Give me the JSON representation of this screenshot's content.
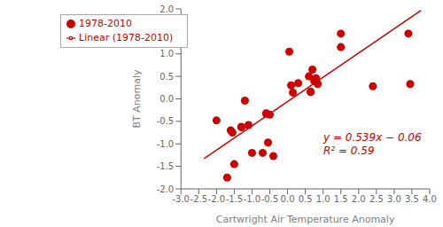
{
  "chart_data": {
    "type": "scatter",
    "x_label": "Cartwright Air Temperature Anomaly",
    "y_label": "BT Anomaly",
    "annotations": [
      "y = 0.539x − 0.06",
      "R² = 0.59"
    ],
    "xlim": [
      -3.0,
      4.0
    ],
    "ylim": [
      -2.0,
      2.0
    ],
    "xticks": [
      {
        "value": -3.0,
        "label": "-3.0"
      },
      -2.5,
      {
        "value": -2.0,
        "label": "-2.0"
      },
      -1.5,
      {
        "value": -1.0,
        "label": "-1.0"
      },
      -0.5,
      {
        "value": 0.0,
        "label": "0.0"
      },
      0.5,
      {
        "value": 1.0,
        "label": "1.0"
      },
      1.5,
      {
        "value": 2.0,
        "label": "2.0"
      },
      2.5,
      {
        "value": 3.0,
        "label": "3.0"
      },
      3.5,
      {
        "value": 4.0,
        "label": "4.0"
      }
    ],
    "yticks": [
      {
        "value": -2.0,
        "label": "-2.0"
      },
      -1.5,
      {
        "value": -1.0,
        "label": "-1.0"
      },
      -0.5,
      {
        "value": 0.0,
        "label": "0.0"
      },
      0.5,
      {
        "value": 1.0,
        "label": "1.0"
      },
      1.5,
      {
        "value": 2.0,
        "label": "2.0"
      }
    ],
    "grid": false,
    "legend": "upper left",
    "series": [
      {
        "name": "1978-2010",
        "type": "scatter",
        "color": "#cc0000",
        "marker": "circle",
        "x": [
          -2.0,
          -1.7,
          -1.6,
          -1.55,
          -1.5,
          -1.3,
          -1.3,
          -1.2,
          -1.1,
          -1.0,
          -0.7,
          -0.6,
          -0.6,
          -0.55,
          -0.5,
          -0.4,
          0.05,
          0.1,
          0.15,
          0.3,
          0.6,
          0.65,
          0.65,
          0.7,
          0.75,
          0.8,
          0.85,
          1.5,
          1.5,
          2.4,
          3.4,
          3.45
        ],
        "values": [
          -0.48,
          -1.75,
          -0.7,
          -0.75,
          -1.45,
          -0.63,
          -0.62,
          -0.04,
          -0.58,
          -1.2,
          -1.2,
          -0.33,
          -0.32,
          -0.97,
          -0.35,
          -1.27,
          1.05,
          0.3,
          0.14,
          0.35,
          0.5,
          0.15,
          0.16,
          0.65,
          0.4,
          0.46,
          0.33,
          1.15,
          1.45,
          0.28,
          1.45,
          0.33
        ]
      },
      {
        "name": "Linear (1978-2010)",
        "type": "line",
        "color": "#cc0000",
        "line_style": "solid",
        "x": [
          -2.35,
          3.75
        ],
        "values": [
          -1.32665,
          1.96125
        ]
      }
    ]
  }
}
